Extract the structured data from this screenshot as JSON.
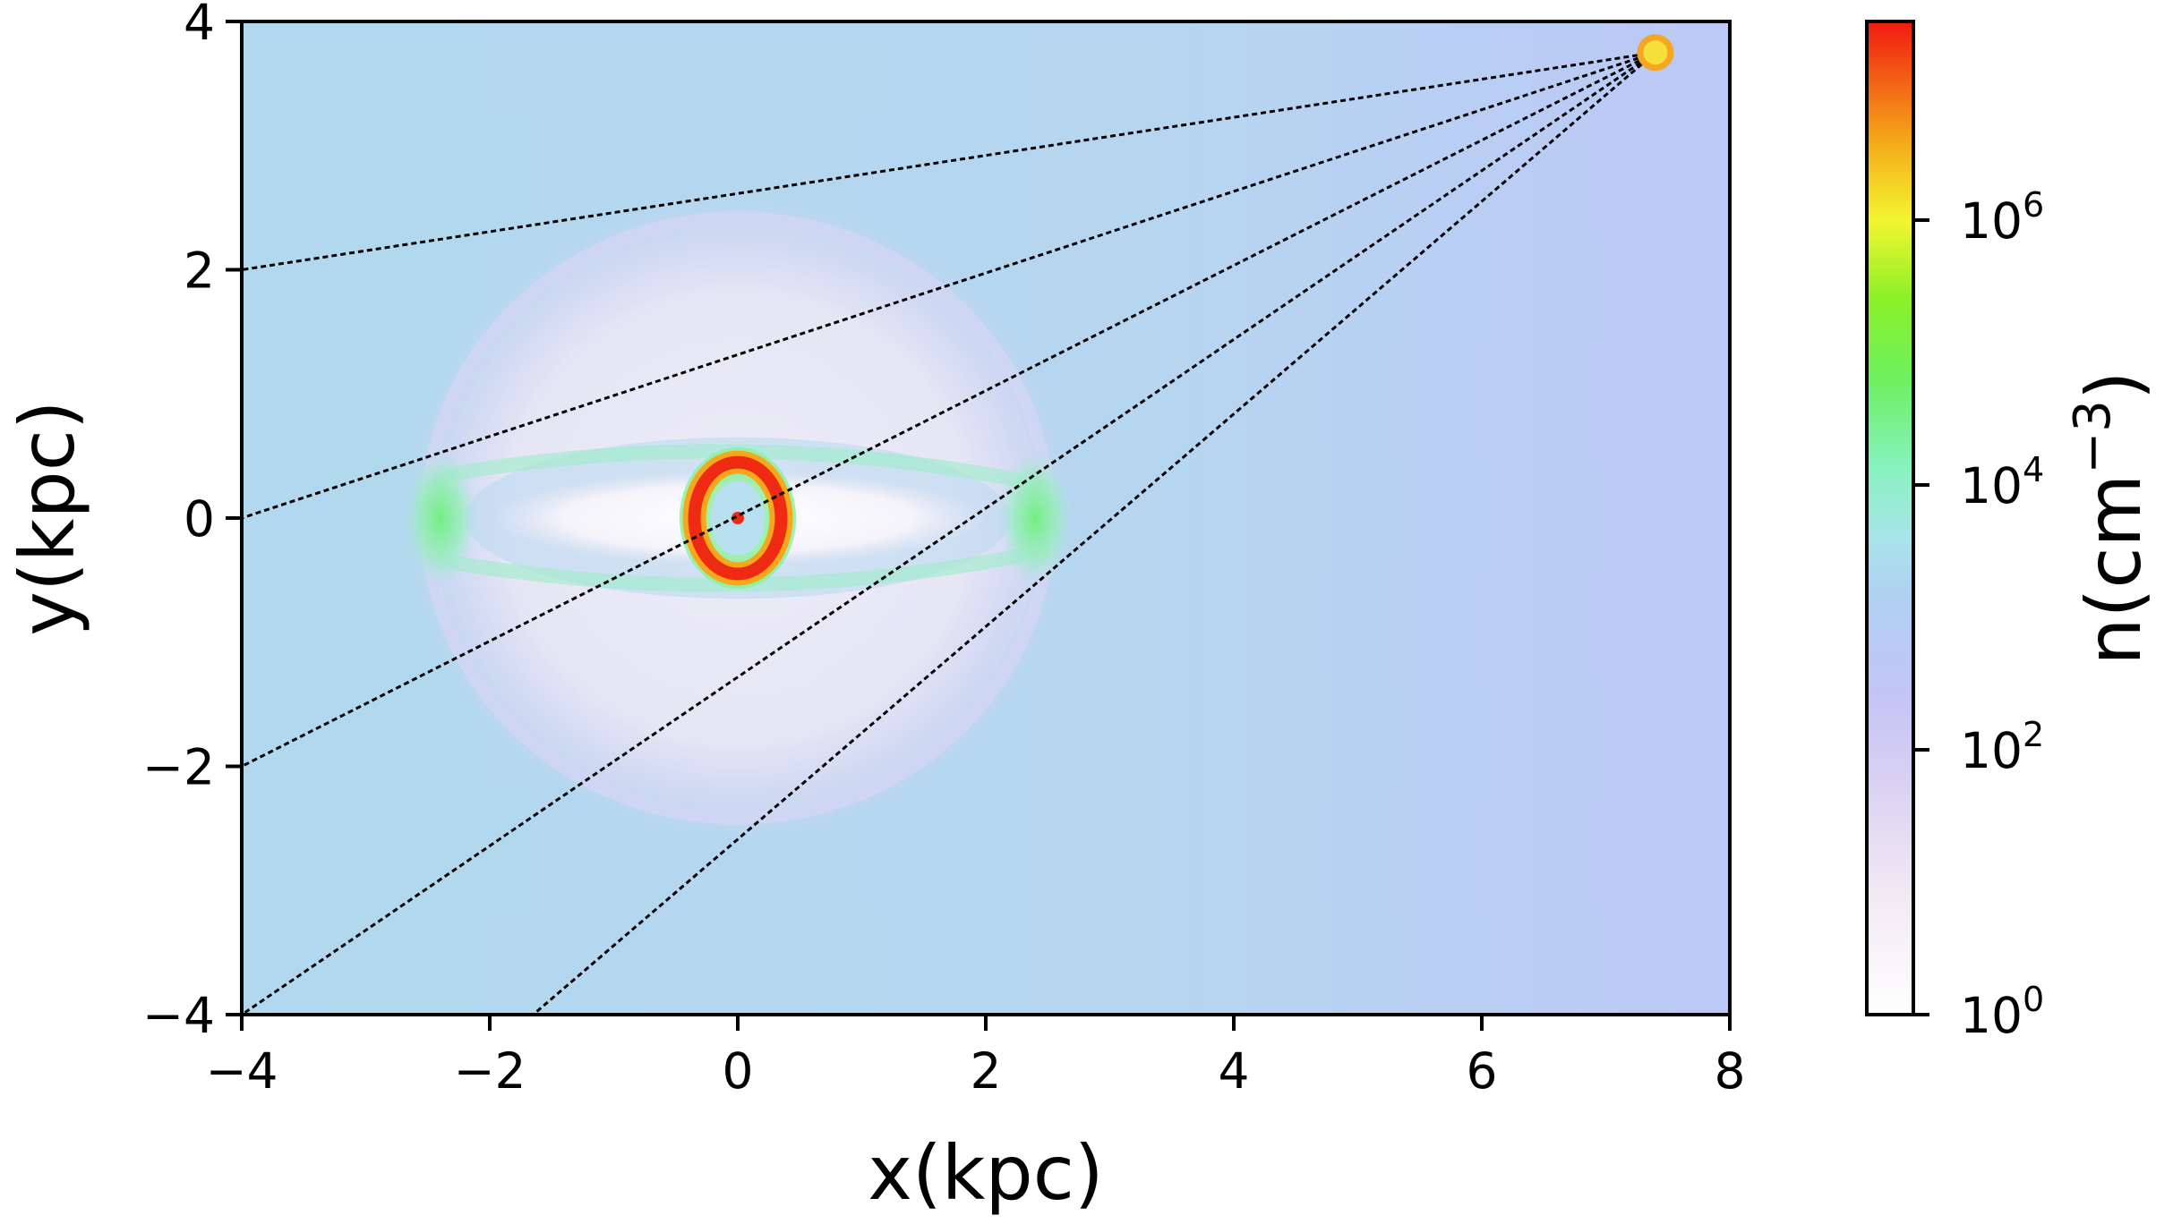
{
  "chart_data": {
    "type": "heatmap",
    "xlabel": "x(kpc)",
    "ylabel": "y(kpc)",
    "xlim": [
      -4,
      8
    ],
    "ylim": [
      -4,
      4
    ],
    "x_ticks": [
      -4,
      -2,
      0,
      2,
      4,
      6,
      8
    ],
    "x_tick_labels": [
      "−4",
      "−2",
      "0",
      "2",
      "4",
      "6",
      "8"
    ],
    "y_ticks": [
      -4,
      -2,
      0,
      2,
      4
    ],
    "y_tick_labels": [
      "−4",
      "−2",
      "0",
      "2",
      "4"
    ],
    "colorbar": {
      "label": "n(cm",
      "label_exponent": "−3",
      "label_suffix": ")",
      "scale": "log",
      "range_log10": [
        0,
        7.5
      ],
      "ticks_log10": [
        0,
        2,
        4,
        6
      ],
      "tick_base": "10",
      "tick_exponents": [
        "0",
        "2",
        "4",
        "6"
      ],
      "colormap": [
        "#ffffff",
        "#e8dcf0",
        "#c4c4f6",
        "#aedcf0",
        "#7ff2b8",
        "#6ff03a",
        "#f4f530",
        "#f58a14",
        "#f02010"
      ]
    },
    "observer": {
      "x": 7.4,
      "y": 3.75,
      "color": "#f5a623"
    },
    "sight_lines": [
      {
        "from": [
          7.4,
          3.75
        ],
        "to": [
          -4,
          2
        ]
      },
      {
        "from": [
          7.4,
          3.75
        ],
        "to": [
          -4,
          0
        ]
      },
      {
        "from": [
          7.4,
          3.75
        ],
        "to": [
          -4,
          -2
        ]
      },
      {
        "from": [
          7.4,
          3.75
        ],
        "to": [
          -4,
          -4
        ]
      },
      {
        "from": [
          7.4,
          3.75
        ],
        "to": [
          -1.65,
          -4
        ]
      }
    ],
    "features": [
      {
        "name": "outer-disk",
        "cx": 0,
        "cy": 0,
        "rx": 2.7,
        "ry": 2.6,
        "log_n": 1.5
      },
      {
        "name": "central-ring",
        "cx": 0,
        "cy": 0,
        "rx": 0.35,
        "ry": 0.45,
        "log_n": 7.2
      },
      {
        "name": "left-arm-end",
        "cx": -2.4,
        "cy": 0,
        "log_n": 4.5
      },
      {
        "name": "right-arm-end",
        "cx": 2.4,
        "cy": 0,
        "log_n": 4.5
      }
    ]
  }
}
